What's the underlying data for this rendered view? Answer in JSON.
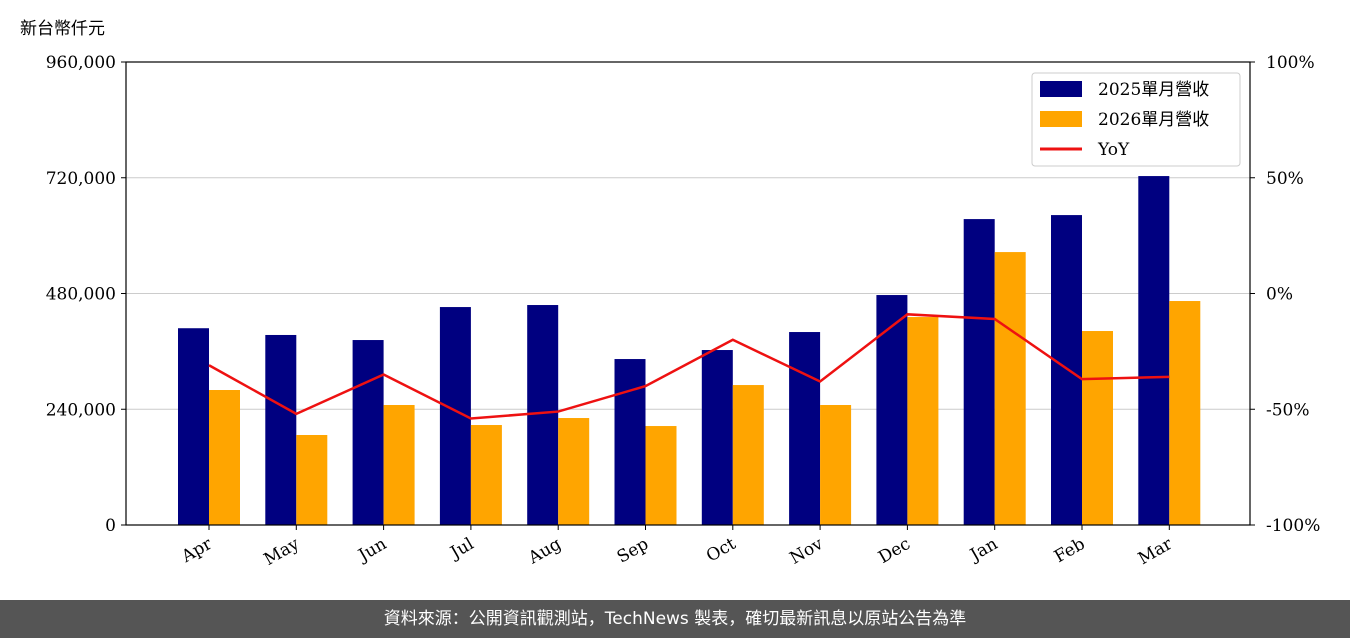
{
  "chart_data": {
    "type": "bar_line",
    "y_label": "新台幣仟元",
    "categories": [
      "Apr",
      "May",
      "Jun",
      "Jul",
      "Aug",
      "Sep",
      "Oct",
      "Nov",
      "Dec",
      "Jan",
      "Feb",
      "Mar"
    ],
    "series": [
      {
        "name": "2025單月營收",
        "color": "#000080",
        "type": "bar",
        "values": [
          408000,
          394000,
          383500,
          451900,
          456100,
          344100,
          362800,
          400100,
          476800,
          634300,
          642600,
          723500
        ]
      },
      {
        "name": "2026單月營收",
        "color": "#ffa500",
        "type": "bar",
        "values": [
          279900,
          186600,
          248800,
          207300,
          221800,
          205200,
          290200,
          248800,
          431200,
          565900,
          402200,
          464400
        ]
      },
      {
        "name": "YoY",
        "color": "#ee1111",
        "type": "line",
        "axis": "y2",
        "values": [
          -31,
          -52,
          -35,
          -54,
          -51,
          -40,
          -20,
          -38,
          -9,
          -11,
          -37,
          -36
        ]
      }
    ],
    "ylim": [
      0,
      960000
    ],
    "yticks": [
      0,
      {
        "value": 240000,
        "label": "240,000"
      },
      {
        "value": 480000,
        "label": "480,000"
      },
      {
        "value": 720000,
        "label": "720,000"
      },
      {
        "value": 960000,
        "label": "960,000"
      }
    ],
    "y2lim": [
      -100,
      100
    ],
    "y2ticks": [
      {
        "value": -100,
        "label": "-100%"
      },
      {
        "value": -50,
        "label": "-50%"
      },
      {
        "value": 0,
        "label": "0%"
      },
      {
        "value": 50,
        "label": "50%"
      },
      {
        "value": 100,
        "label": "100%"
      }
    ],
    "grid": true,
    "legend": "upper right",
    "source": "資料來源：公開資訊觀測站，TechNews 製表，確切最新訊息以原站公告為準"
  }
}
